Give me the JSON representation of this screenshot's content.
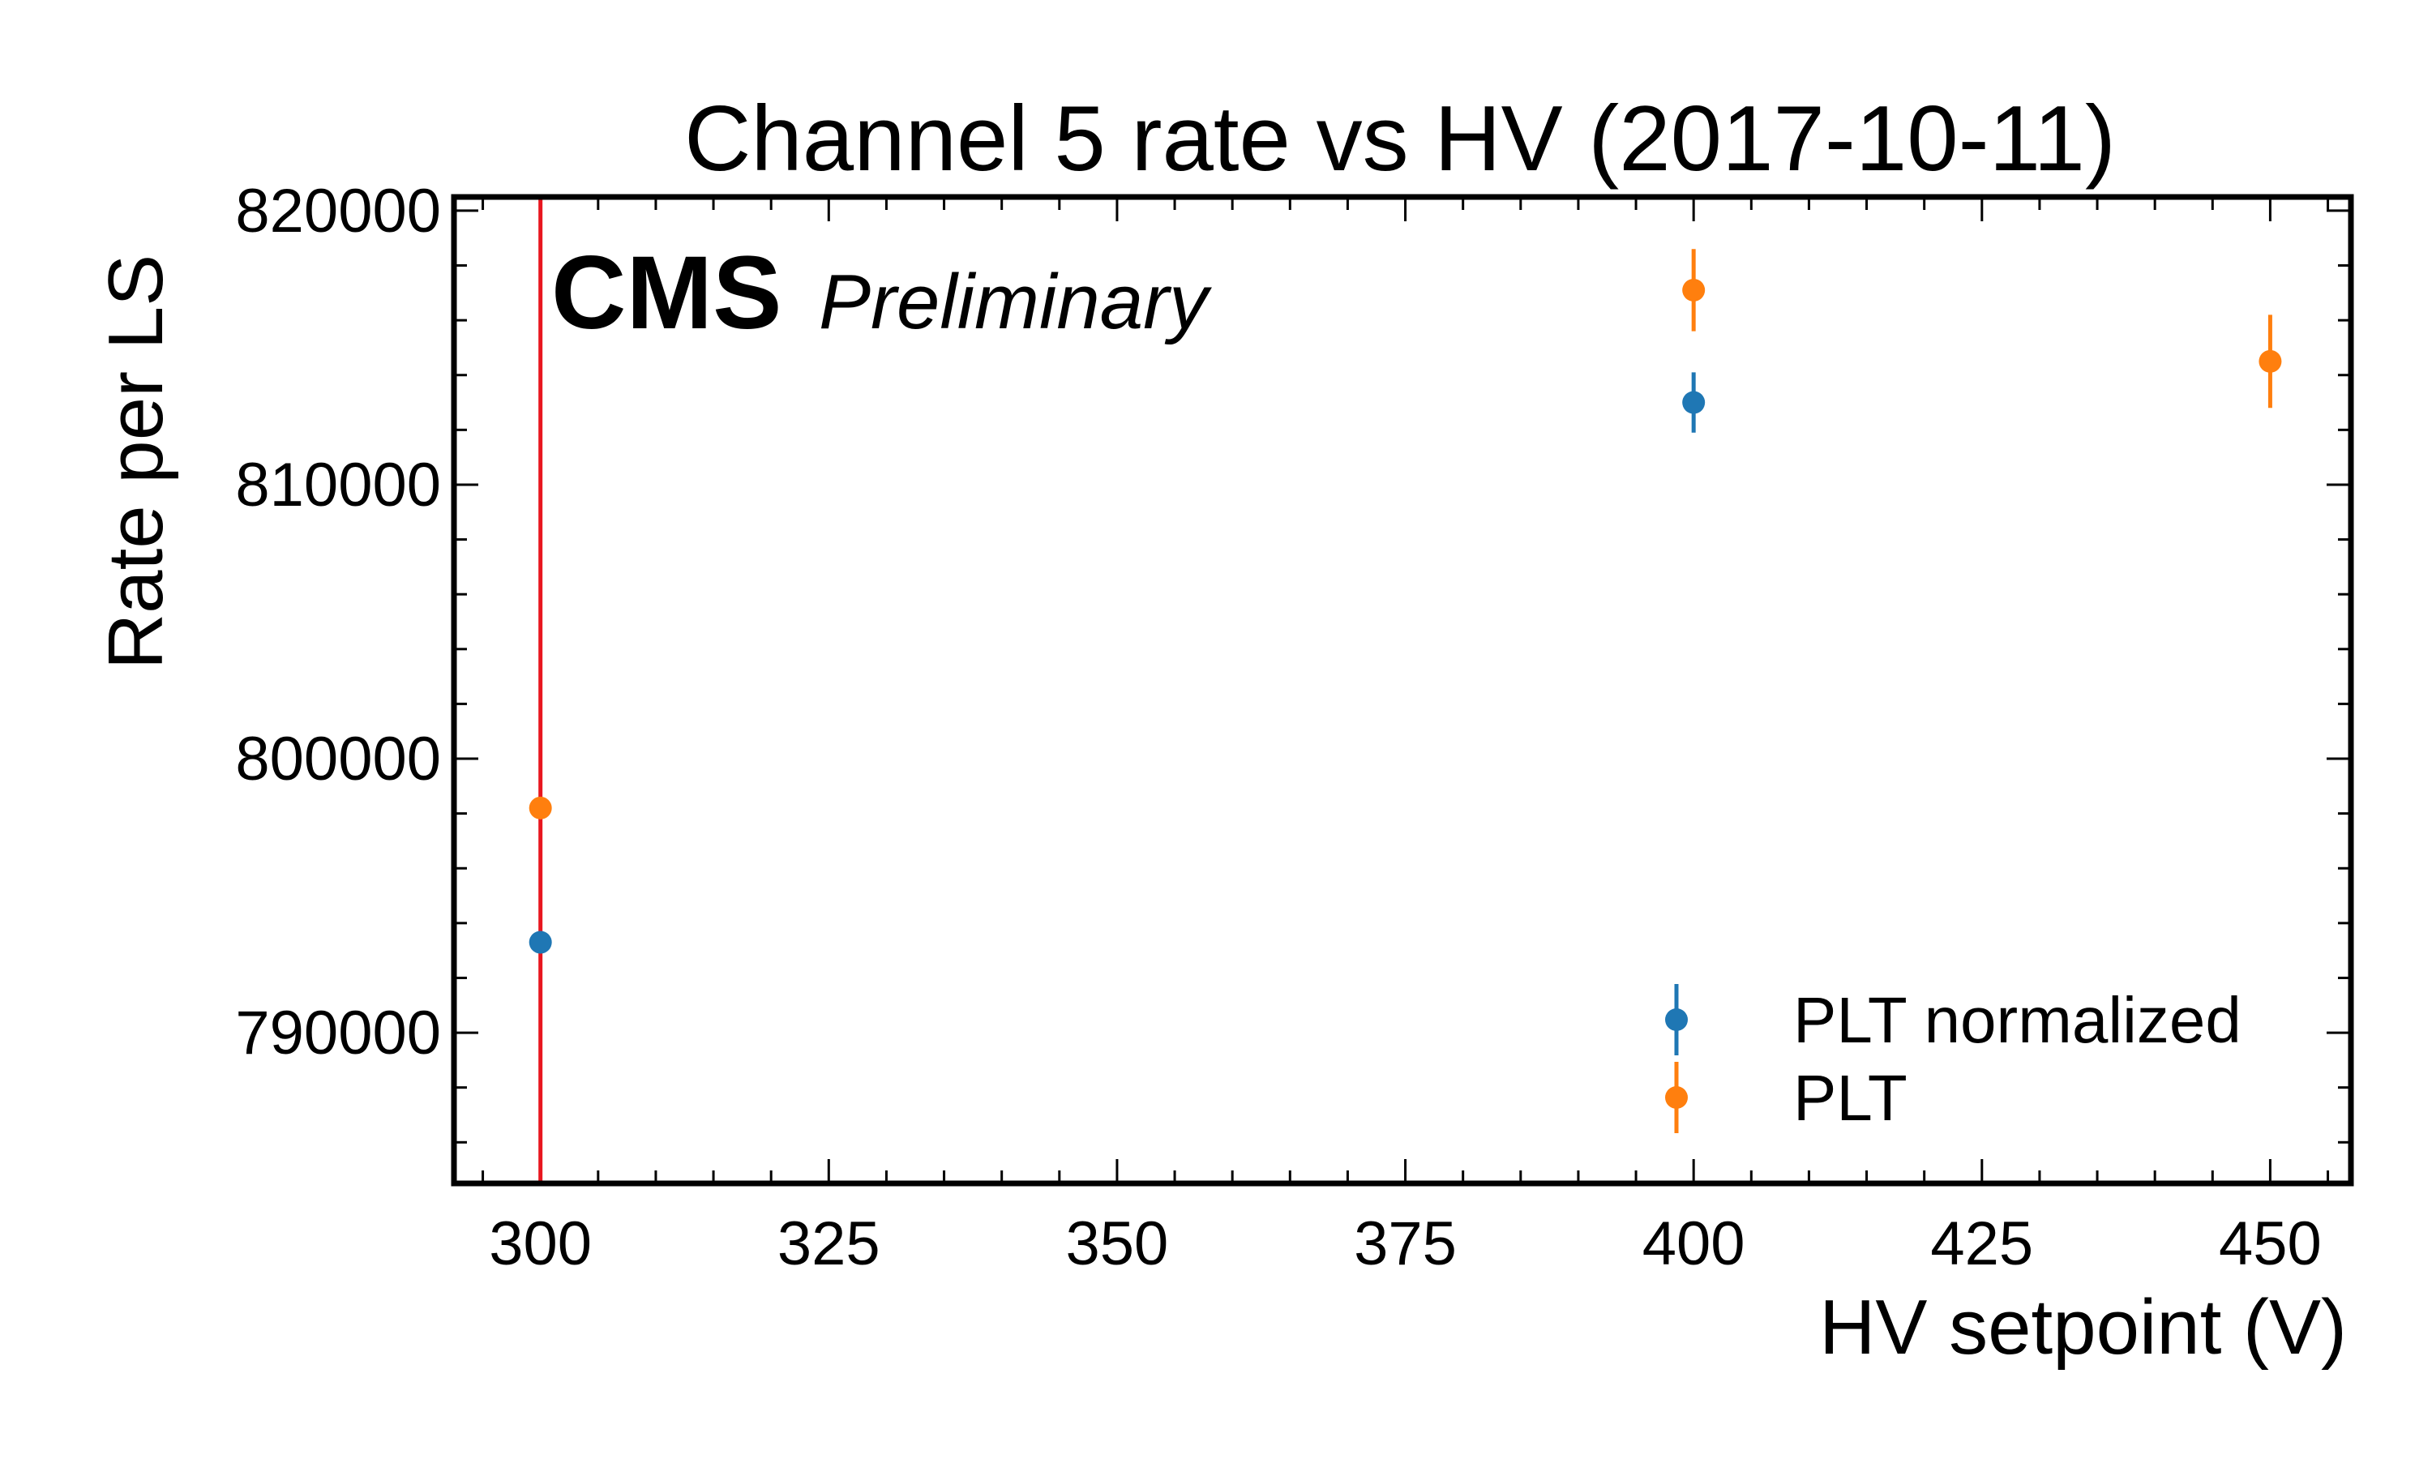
{
  "chart_data": {
    "type": "scatter",
    "title": "Channel 5 rate vs HV (2017-10-11)",
    "xlabel": "HV setpoint (V)",
    "ylabel": "Rate per LS",
    "xlim": [
      292.5,
      457
    ],
    "ylim": [
      784500,
      820500
    ],
    "x_ticks": [
      300,
      325,
      350,
      375,
      400,
      425,
      450
    ],
    "x_tick_labels": [
      "300",
      "325",
      "350",
      "375",
      "400",
      "425",
      "450"
    ],
    "y_ticks": [
      790000,
      800000,
      810000,
      820000
    ],
    "y_tick_labels": [
      "790000",
      "800000",
      "810000",
      "820000"
    ],
    "grid": false,
    "legend_position": "bottom-right",
    "experiment_label": "CMS",
    "status_label": "Preliminary",
    "vertical_line": {
      "x": 300,
      "color": "#e8171f"
    },
    "series": [
      {
        "name": "PLT normalized",
        "color": "#1f77b4",
        "points": [
          {
            "x": 300,
            "y": 793300,
            "yerr": 300
          },
          {
            "x": 400,
            "y": 813000,
            "yerr": 1100
          }
        ]
      },
      {
        "name": "PLT",
        "color": "#ff7f0e",
        "points": [
          {
            "x": 300,
            "y": 798200,
            "yerr": 300
          },
          {
            "x": 400,
            "y": 817100,
            "yerr": 1500
          },
          {
            "x": 450,
            "y": 814500,
            "yerr": 1700
          }
        ]
      }
    ]
  }
}
